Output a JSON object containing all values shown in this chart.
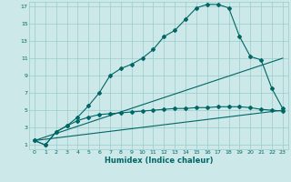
{
  "xlabel": "Humidex (Indice chaleur)",
  "bg_color": "#cce8e8",
  "grid_color": "#99cccc",
  "line_color": "#006666",
  "xlim": [
    -0.5,
    23.5
  ],
  "ylim": [
    0.5,
    17.5
  ],
  "xticks": [
    0,
    1,
    2,
    3,
    4,
    5,
    6,
    7,
    8,
    9,
    10,
    11,
    12,
    13,
    14,
    15,
    16,
    17,
    18,
    19,
    20,
    21,
    22,
    23
  ],
  "yticks": [
    1,
    3,
    5,
    7,
    9,
    11,
    13,
    15,
    17
  ],
  "curve1_x": [
    0,
    1,
    2,
    3,
    4,
    5,
    6,
    7,
    8,
    9,
    10,
    11,
    12,
    13,
    14,
    15,
    16,
    17,
    18,
    19,
    20,
    21,
    22,
    23
  ],
  "curve1_y": [
    1.5,
    1.0,
    2.5,
    3.2,
    4.2,
    5.5,
    7.0,
    9.0,
    9.8,
    10.3,
    11.0,
    12.0,
    13.5,
    14.2,
    15.5,
    16.8,
    17.2,
    17.2,
    16.8,
    13.5,
    11.2,
    10.8,
    7.5,
    5.2
  ],
  "curve2_x": [
    0,
    1,
    2,
    3,
    4,
    5,
    6,
    7,
    8,
    9,
    10,
    11,
    12,
    13,
    14,
    15,
    16,
    17,
    18,
    19,
    20,
    21,
    22,
    23
  ],
  "curve2_y": [
    1.5,
    1.0,
    2.5,
    3.2,
    3.8,
    4.2,
    4.5,
    4.6,
    4.7,
    4.8,
    4.9,
    5.0,
    5.1,
    5.2,
    5.2,
    5.3,
    5.3,
    5.4,
    5.4,
    5.4,
    5.3,
    5.1,
    5.0,
    4.9
  ],
  "line1_x": [
    0,
    23
  ],
  "line1_y": [
    1.5,
    5.0
  ],
  "line2_x": [
    0,
    23
  ],
  "line2_y": [
    1.5,
    11.0
  ]
}
